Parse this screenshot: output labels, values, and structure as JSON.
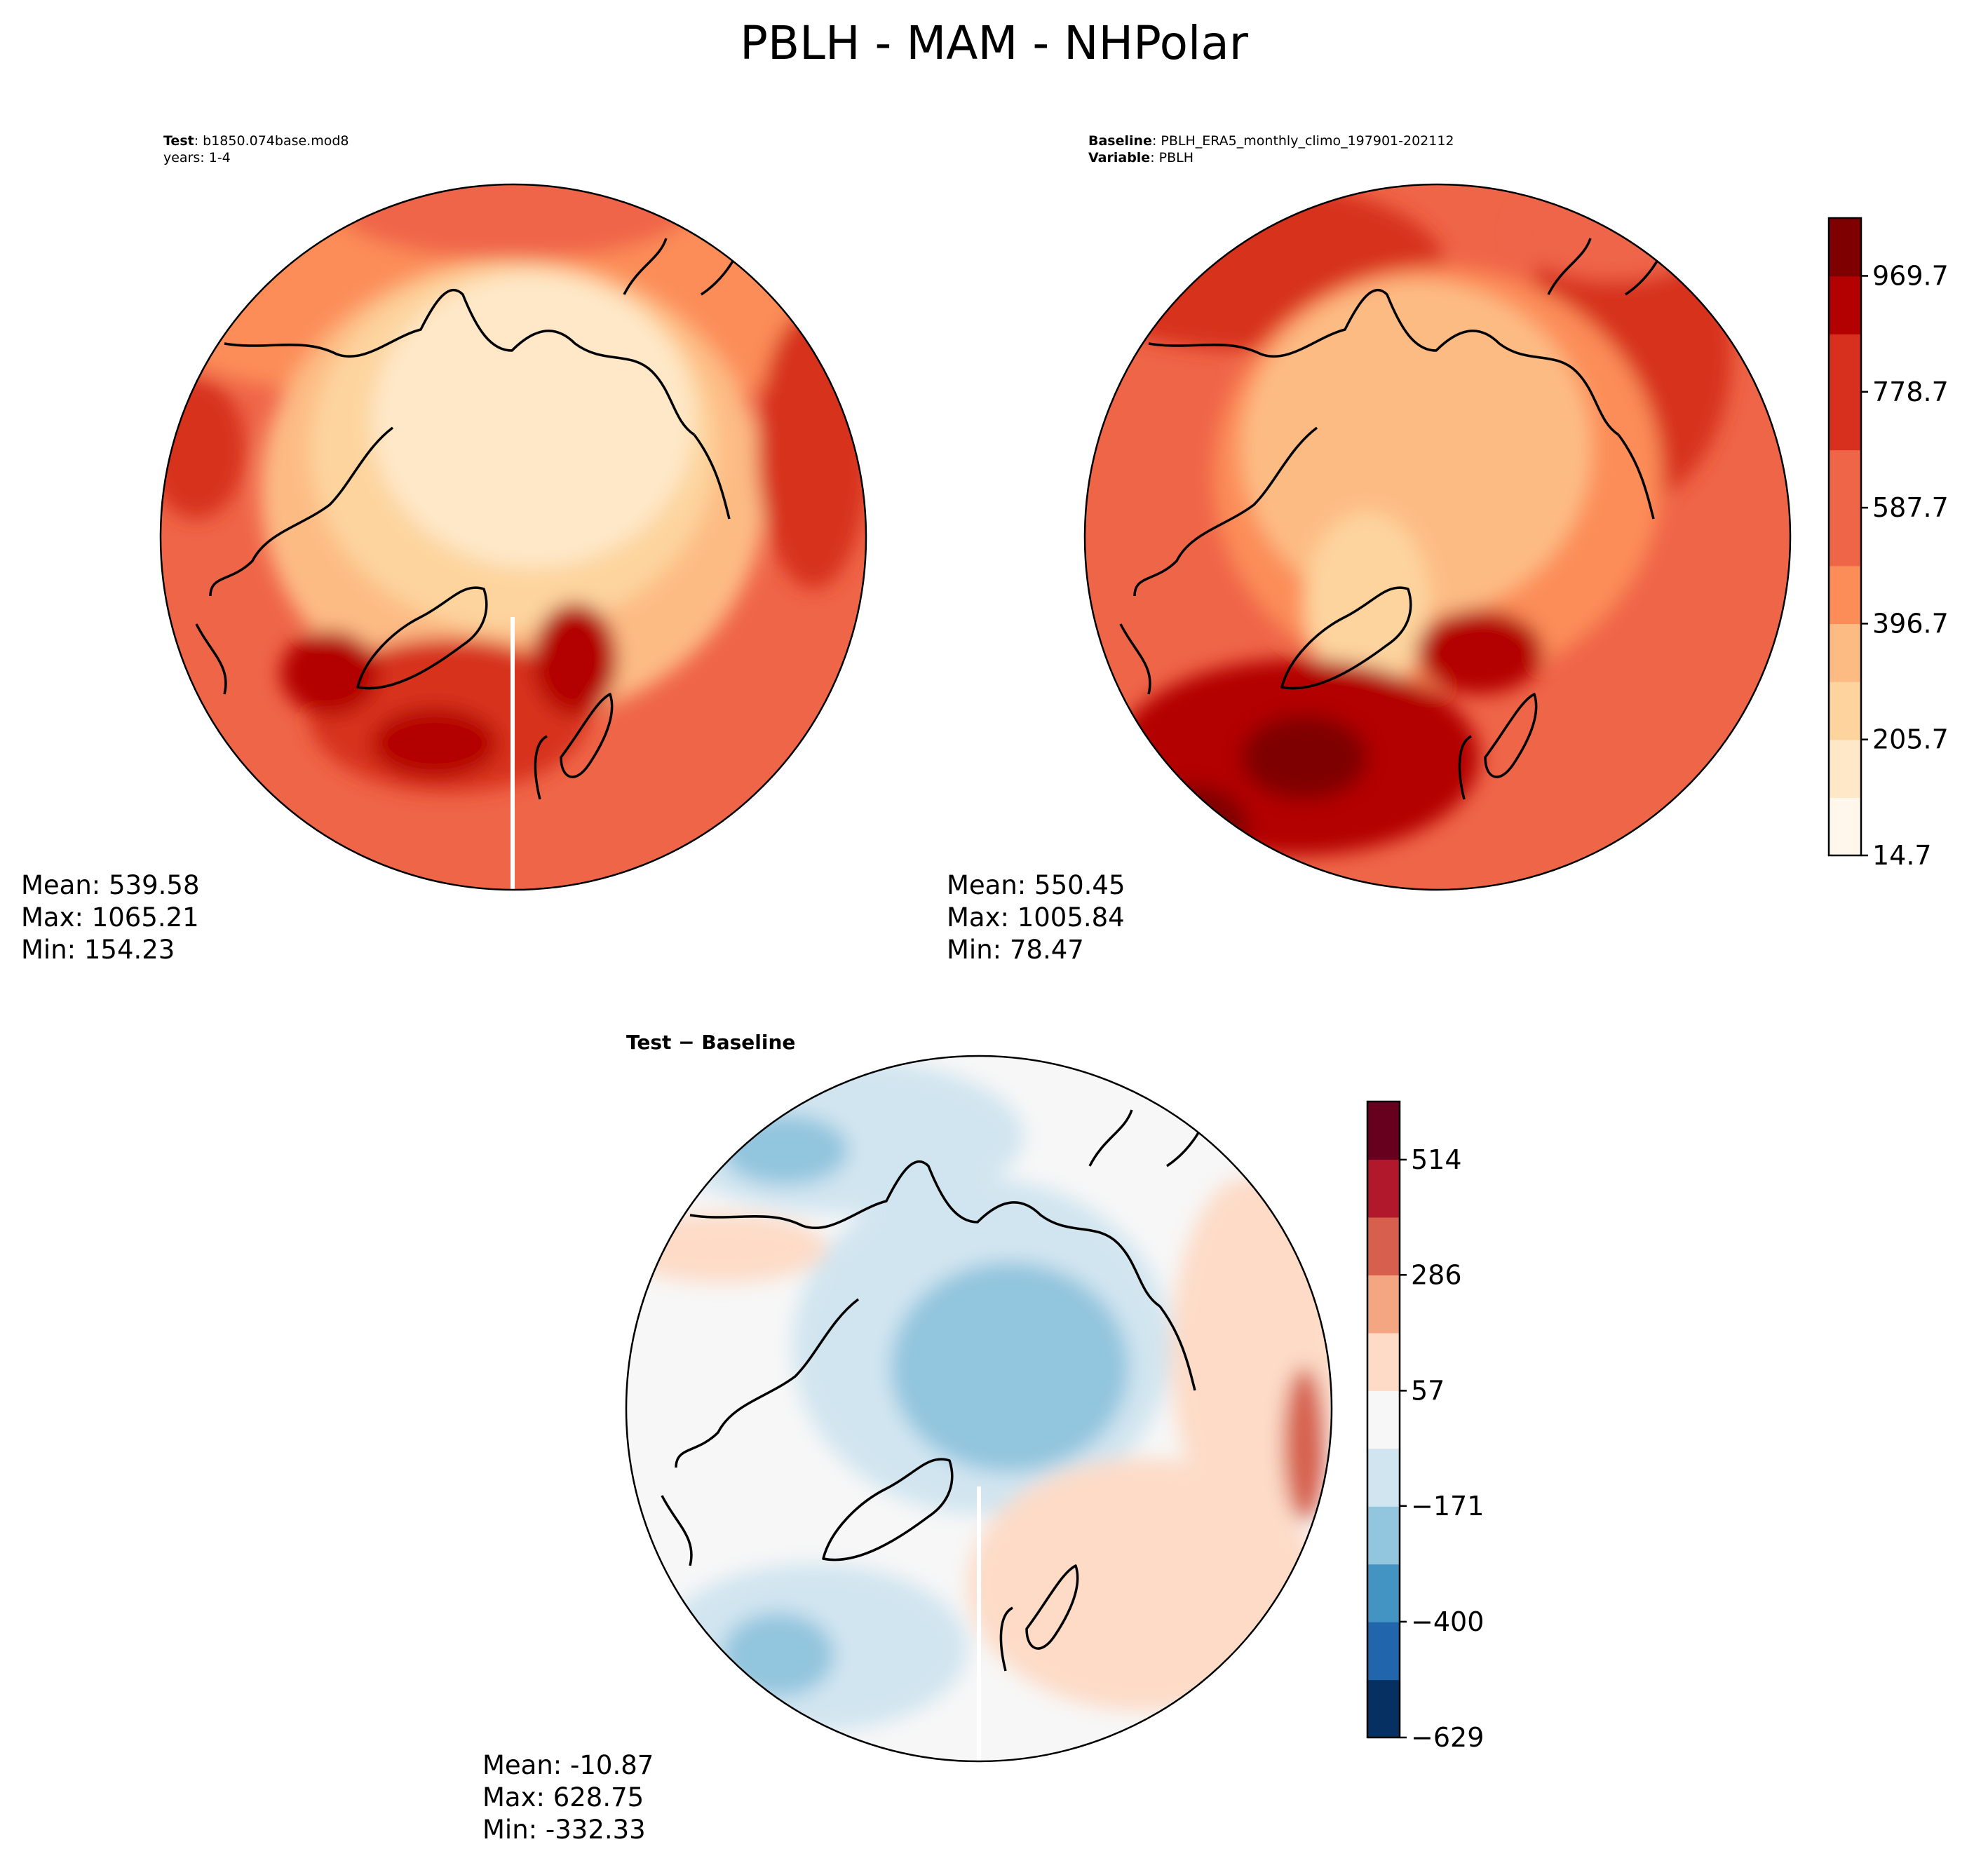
{
  "title": "PBLH - MAM - NHPolar",
  "colors": {
    "coast": "#000000",
    "gap": "#ffffff",
    "orrd": [
      "#fff7ec",
      "#fee8c8",
      "#fdd49e",
      "#fdbb84",
      "#fc8d59",
      "#ef6548",
      "#d7301f",
      "#b30000",
      "#7f0000"
    ],
    "rdbu": [
      "#053061",
      "#2166ac",
      "#4393c3",
      "#92c5de",
      "#d1e5f0",
      "#f7f7f7",
      "#fddbc7",
      "#f4a582",
      "#d6604d",
      "#b2182b",
      "#67001f"
    ]
  },
  "chart_data": [
    {
      "type": "heatmap",
      "name": "test",
      "projection": "north-polar-stereographic",
      "subtitle": {
        "test_label": "Test",
        "test_value": ": b1850.074base.mod8",
        "years": "years: 1-4"
      },
      "stats": {
        "mean": "Mean: 539.58",
        "max": "Max: 1065.21",
        "min": "Min: 154.23"
      }
    },
    {
      "type": "heatmap",
      "name": "baseline",
      "projection": "north-polar-stereographic",
      "subtitle": {
        "baseline_label": "Baseline",
        "baseline_value": ": PBLH_ERA5_monthly_climo_197901-202112",
        "variable_label": "Variable",
        "variable_value": ": PBLH"
      },
      "stats": {
        "mean": "Mean: 550.45",
        "max": "Max: 1005.84",
        "min": "Min: 78.47"
      },
      "colorbar": {
        "min": 14.7,
        "max": 1065.0,
        "levels": 11,
        "tick_values": [
          14.7,
          205.7,
          396.7,
          587.7,
          778.7,
          969.7
        ],
        "tick_labels": [
          "14.7",
          "205.7",
          "396.7",
          "587.7",
          "778.7",
          "969.7"
        ]
      }
    },
    {
      "type": "heatmap",
      "name": "difference",
      "projection": "north-polar-stereographic",
      "title": "Test − Baseline",
      "stats": {
        "mean": "Mean: -10.87",
        "max": "Max: 628.75",
        "min": "Min: -332.33"
      },
      "colorbar": {
        "min": -629,
        "max": 629,
        "levels": 11,
        "tick_values": [
          -629,
          -400,
          -171,
          57,
          286,
          514
        ],
        "tick_labels": [
          "−629",
          "−400",
          "−171",
          "57",
          "286",
          "514"
        ]
      }
    }
  ]
}
